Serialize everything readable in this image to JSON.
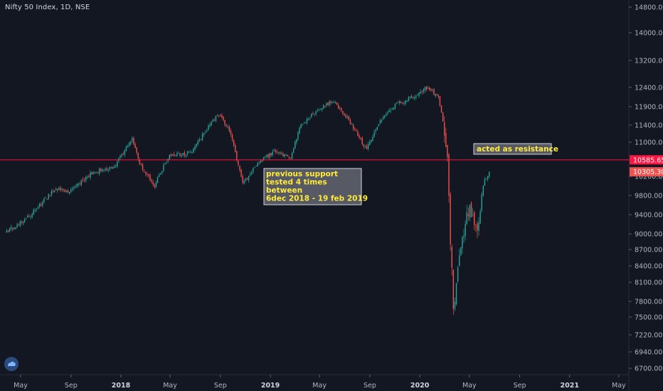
{
  "symbol": "Nifty 50 Index, 1D, NSE",
  "colors": {
    "background": "#131722",
    "up": "#26a69a",
    "down": "#ef5350",
    "resistance": "#ff1744",
    "axis_text": "#b2b5be",
    "annotation_text": "#ffeb3b",
    "annotation_bg": "#5d606b"
  },
  "chart_data": {
    "type": "candlestick",
    "y_ticks": [
      6700,
      6940,
      7220,
      7500,
      7800,
      8100,
      8400,
      8700,
      9000,
      9400,
      9800,
      10200,
      11000,
      11400,
      11900,
      12400,
      13200,
      14000,
      14800
    ],
    "y_tick_labels": [
      "6700.00",
      "6940.00",
      "7220.00",
      "7500.00",
      "7800.00",
      "8100.00",
      "8400.00",
      "8700.00",
      "9000.00",
      "9400.00",
      "9800.00",
      "10200.00",
      "11000.00",
      "11400.00",
      "11900.00",
      "12400.00",
      "13200.00",
      "14000.00",
      "14800.00"
    ],
    "x_ticks": [
      "2017-05",
      "2017-09",
      "2018-01",
      "2018-05",
      "2018-09",
      "2019-01",
      "2019-05",
      "2019-09",
      "2020-01",
      "2020-05",
      "2020-09",
      "2021-01",
      "2021-05"
    ],
    "x_tick_labels": [
      "May",
      "Sep",
      "2018",
      "May",
      "Sep",
      "2019",
      "May",
      "Sep",
      "2020",
      "May",
      "Sep",
      "2021",
      "May"
    ],
    "year_labels": [
      "2018",
      "2019",
      "2020",
      "2021"
    ],
    "price_path": [
      [
        "2017-03-28",
        9050
      ],
      [
        "2017-05-20",
        9350
      ],
      [
        "2017-07-25",
        9950
      ],
      [
        "2017-08-25",
        9850
      ],
      [
        "2017-10-25",
        10300
      ],
      [
        "2017-12-15",
        10400
      ],
      [
        "2018-01-29",
        11100
      ],
      [
        "2018-02-15",
        10500
      ],
      [
        "2018-03-23",
        10000
      ],
      [
        "2018-04-30",
        10700
      ],
      [
        "2018-06-20",
        10750
      ],
      [
        "2018-08-28",
        11700
      ],
      [
        "2018-09-25",
        11200
      ],
      [
        "2018-10-26",
        10050
      ],
      [
        "2018-12-06",
        10550
      ],
      [
        "2019-01-15",
        10800
      ],
      [
        "2019-02-19",
        10600
      ],
      [
        "2019-03-15",
        11400
      ],
      [
        "2019-04-20",
        11750
      ],
      [
        "2019-06-03",
        12050
      ],
      [
        "2019-07-10",
        11550
      ],
      [
        "2019-08-23",
        10850
      ],
      [
        "2019-09-25",
        11500
      ],
      [
        "2019-11-05",
        11950
      ],
      [
        "2019-12-31",
        12250
      ],
      [
        "2020-01-20",
        12400
      ],
      [
        "2020-02-15",
        12150
      ],
      [
        "2020-03-01",
        11300
      ],
      [
        "2020-03-10",
        10350
      ],
      [
        "2020-03-15",
        9000
      ],
      [
        "2020-03-24",
        7610
      ],
      [
        "2020-04-08",
        8700
      ],
      [
        "2020-04-30",
        9550
      ],
      [
        "2020-05-20",
        9050
      ],
      [
        "2020-06-05",
        10100
      ],
      [
        "2020-06-22",
        10305
      ]
    ],
    "last_price": 10305.3,
    "last_price_label": "10305.30",
    "resistance_level": 10585.65,
    "resistance_label": "10585.65",
    "grid": false
  },
  "annotations": {
    "support_lines": [
      "previous support",
      "tested 4 times",
      "between",
      "6dec 2018 - 19 feb 2019"
    ],
    "resistance_text": "acted as resistance"
  }
}
